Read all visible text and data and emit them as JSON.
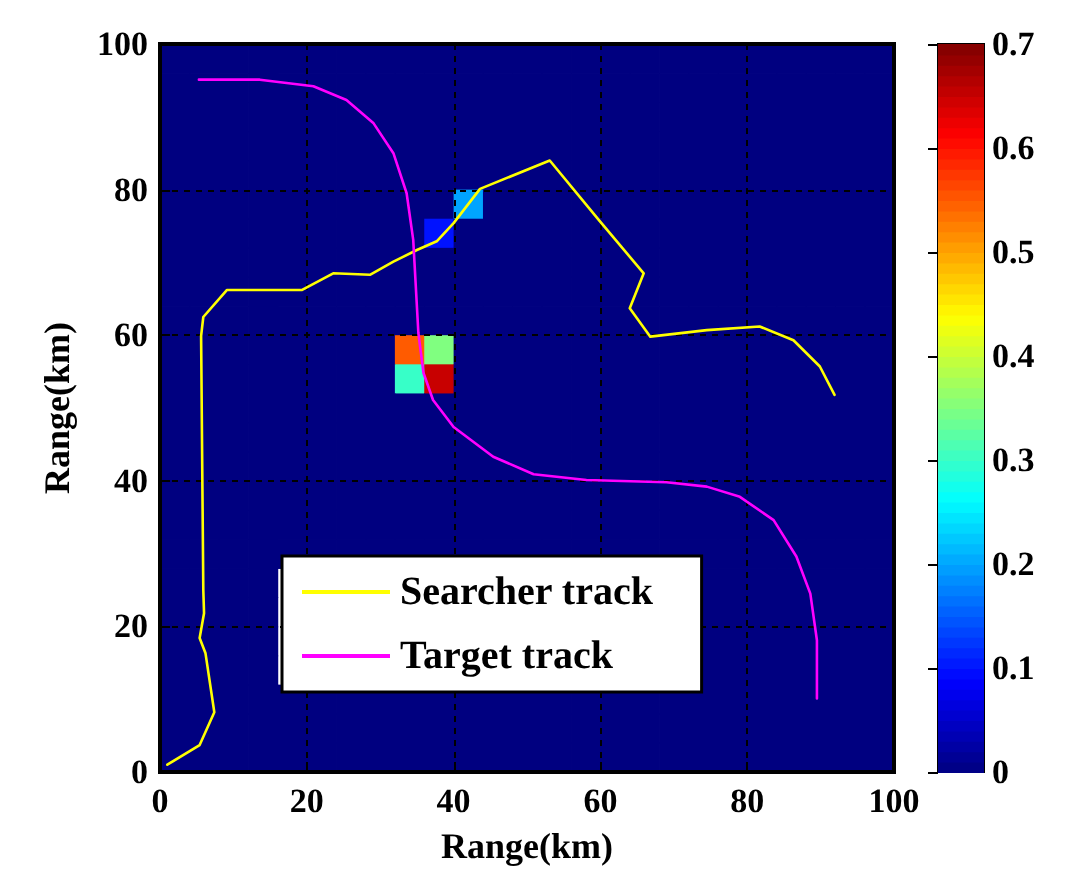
{
  "chart_data": [
    {
      "type": "heatmap",
      "clim": [
        0,
        0.7
      ],
      "cticks": [
        0,
        0.1,
        0.2,
        0.3,
        0.4,
        0.5,
        0.6,
        0.7
      ],
      "categories": [
        null,
        null,
        null,
        null,
        null,
        null,
        null,
        null,
        null,
        null,
        null,
        null,
        null,
        null,
        null,
        null,
        null,
        null,
        null,
        null,
        null,
        null,
        null,
        null,
        null
      ],
      "y_categories": [
        null,
        null,
        null,
        null,
        null,
        null,
        null,
        null,
        null,
        null,
        null,
        null,
        null,
        null,
        null,
        null,
        null,
        null,
        null,
        null,
        null,
        null,
        null,
        null,
        null
      ],
      "cells": [
        [
          0,
          0,
          0,
          0,
          0,
          0,
          0,
          0,
          0,
          0,
          0,
          0,
          0,
          0,
          0,
          0,
          0,
          0,
          0,
          0,
          0,
          0,
          0,
          0,
          0
        ],
        [
          0,
          0,
          0,
          0,
          0,
          0,
          0,
          0,
          0,
          0,
          0,
          0,
          0,
          0,
          0,
          0,
          0,
          0,
          0,
          0,
          0,
          0,
          0,
          0,
          0
        ],
        [
          0,
          0,
          0,
          0,
          0,
          0,
          0,
          0,
          0,
          0,
          0,
          0,
          0,
          0,
          0,
          0,
          0,
          0,
          0,
          0,
          0,
          0,
          0,
          0,
          0
        ],
        [
          0,
          0,
          0,
          0,
          0,
          0,
          0,
          0,
          0,
          0,
          0,
          0,
          0,
          0,
          0,
          0,
          0,
          0,
          0,
          0,
          0,
          0,
          0,
          0,
          0
        ],
        [
          0,
          0,
          0,
          0,
          0,
          0,
          0,
          0,
          0,
          0,
          0,
          0,
          0,
          0,
          0,
          0,
          0,
          0,
          0,
          0,
          0,
          0,
          0,
          0,
          0
        ],
        [
          0,
          0,
          0,
          0,
          0,
          0,
          0,
          0,
          0,
          0,
          0.2,
          0,
          0,
          0,
          0,
          0,
          0,
          0,
          0,
          0,
          0,
          0,
          0,
          0,
          0
        ],
        [
          0,
          0,
          0,
          0,
          0,
          0,
          0,
          0,
          0,
          0.1,
          0,
          0,
          0,
          0,
          0,
          0,
          0,
          0,
          0,
          0,
          0,
          0,
          0,
          0,
          0
        ],
        [
          0,
          0,
          0,
          0,
          0,
          0,
          0,
          0,
          0,
          0,
          0,
          0,
          0,
          0,
          0,
          0,
          0,
          0,
          0,
          0,
          0,
          0,
          0,
          0,
          0
        ],
        [
          0,
          0,
          0,
          0,
          0,
          0,
          0,
          0,
          0,
          0,
          0,
          0,
          0,
          0,
          0,
          0,
          0,
          0,
          0,
          0,
          0,
          0,
          0,
          0,
          0
        ],
        [
          0,
          0,
          0,
          0,
          0,
          0,
          0,
          0,
          0,
          0,
          0,
          0,
          0,
          0,
          0,
          0,
          0,
          0,
          0,
          0,
          0,
          0,
          0,
          0,
          0
        ],
        [
          0,
          0,
          0,
          0,
          0,
          0,
          0,
          0,
          0.55,
          0.35,
          0,
          0,
          0,
          0,
          0,
          0,
          0,
          0,
          0,
          0,
          0,
          0,
          0,
          0,
          0
        ],
        [
          0,
          0,
          0,
          0,
          0,
          0,
          0,
          0,
          0.3,
          0.65,
          0,
          0,
          0,
          0,
          0,
          0,
          0,
          0,
          0,
          0,
          0,
          0,
          0,
          0,
          0
        ],
        [
          0,
          0,
          0,
          0,
          0,
          0,
          0,
          0,
          0,
          0,
          0,
          0,
          0,
          0,
          0,
          0,
          0,
          0,
          0,
          0,
          0,
          0,
          0,
          0,
          0
        ],
        [
          0,
          0,
          0,
          0,
          0,
          0,
          0,
          0,
          0,
          0,
          0,
          0,
          0,
          0,
          0,
          0,
          0,
          0,
          0,
          0,
          0,
          0,
          0,
          0,
          0
        ],
        [
          0,
          0,
          0,
          0,
          0,
          0,
          0,
          0,
          0,
          0,
          0,
          0,
          0,
          0,
          0,
          0,
          0,
          0,
          0,
          0,
          0,
          0,
          0,
          0,
          0
        ],
        [
          0,
          0,
          0,
          0,
          0,
          0,
          0,
          0,
          0,
          0,
          0,
          0,
          0,
          0,
          0,
          0,
          0,
          0,
          0,
          0,
          0,
          0,
          0,
          0,
          0
        ],
        [
          0,
          0,
          0,
          0,
          0,
          0,
          0,
          0,
          0,
          0,
          0,
          0,
          0,
          0,
          0,
          0,
          0,
          0,
          0,
          0,
          0,
          0,
          0,
          0,
          0
        ],
        [
          0,
          0,
          0,
          0,
          0,
          0,
          0,
          0,
          0,
          0,
          0,
          0,
          0,
          0,
          0,
          0,
          0,
          0,
          0,
          0,
          0,
          0,
          0,
          0,
          0
        ],
        [
          0,
          0,
          0,
          0,
          null,
          null,
          null,
          null,
          null,
          null,
          null,
          null,
          null,
          null,
          null,
          null,
          null,
          null,
          0,
          0,
          0,
          0,
          0,
          0,
          0
        ],
        [
          0,
          0,
          0,
          0,
          null,
          null,
          null,
          null,
          null,
          null,
          null,
          null,
          null,
          null,
          null,
          null,
          null,
          null,
          0,
          0,
          0,
          0,
          0,
          0,
          0
        ],
        [
          0,
          0,
          0,
          0,
          null,
          null,
          null,
          null,
          null,
          null,
          null,
          null,
          null,
          null,
          null,
          null,
          null,
          null,
          0,
          0,
          0,
          0,
          0,
          0,
          0
        ],
        [
          0,
          0,
          0,
          0,
          null,
          null,
          null,
          null,
          null,
          null,
          null,
          null,
          null,
          null,
          null,
          null,
          null,
          null,
          0,
          0,
          0,
          0,
          0,
          0,
          0
        ],
        [
          0,
          0,
          0,
          0,
          0,
          0,
          0,
          0,
          0,
          0,
          0,
          0,
          0,
          0,
          0,
          0,
          0,
          0,
          0,
          0,
          0,
          0,
          0,
          0,
          0
        ],
        [
          0,
          0,
          0,
          0,
          0,
          0,
          0,
          0,
          0,
          0,
          0,
          0,
          0,
          0,
          0,
          0,
          0,
          0,
          0,
          0,
          0,
          0,
          0,
          0,
          0
        ],
        [
          0,
          0,
          0,
          0,
          0,
          0,
          0,
          0,
          0,
          0,
          0,
          0,
          0,
          0,
          0,
          0,
          0,
          0,
          0,
          0,
          0,
          0,
          0,
          0,
          0
        ]
      ]
    },
    {
      "type": "line",
      "xlabel": "Range(km)",
      "ylabel": "Range(km)",
      "xlim": [
        0,
        100
      ],
      "ylim": [
        0,
        100
      ],
      "xticks": [
        0,
        20,
        40,
        60,
        80,
        100
      ],
      "yticks": [
        0,
        20,
        40,
        60,
        80,
        100
      ],
      "grid": true,
      "legend": "bottom",
      "series": [
        {
          "name": "Searcher track",
          "color": "#ffff00",
          "x": [
            1,
            5.4,
            7.4,
            6.2,
            5.4,
            6,
            5.9,
            5.6,
            5.9,
            9.1,
            19.3,
            23.6,
            28.6,
            31.8,
            35,
            37.7,
            40,
            43.6,
            53.1,
            59.8,
            65.9,
            64,
            66.8,
            74.5,
            81.7,
            86.3,
            89.9,
            91.9
          ],
          "values": [
            1,
            3.7,
            8.2,
            16.3,
            18.4,
            21.8,
            25,
            59.9,
            62.5,
            66.2,
            66.2,
            68.5,
            68.3,
            70.1,
            71.7,
            72.9,
            75.4,
            80.1,
            84,
            75.8,
            68.5,
            63.7,
            59.8,
            60.7,
            61.2,
            59.3,
            55.7,
            51.8
          ]
        },
        {
          "name": "Target track",
          "color": "#ff00ff",
          "x": [
            5.3,
            13.6,
            20.9,
            25.4,
            29.1,
            31.8,
            33.6,
            34.5,
            35.2,
            35.9,
            37.2,
            40,
            45.4,
            50.9,
            58.1,
            69,
            74.5,
            79,
            83.6,
            86.7,
            88.6,
            89.5,
            89.5
          ],
          "values": [
            95.1,
            95.1,
            94.2,
            92.3,
            89.1,
            85,
            79.5,
            73.1,
            60.3,
            54.8,
            51.1,
            47.4,
            43.3,
            40.9,
            40.1,
            39.8,
            39.2,
            37.8,
            34.6,
            29.6,
            24.5,
            18.1,
            10.1
          ]
        }
      ]
    }
  ]
}
